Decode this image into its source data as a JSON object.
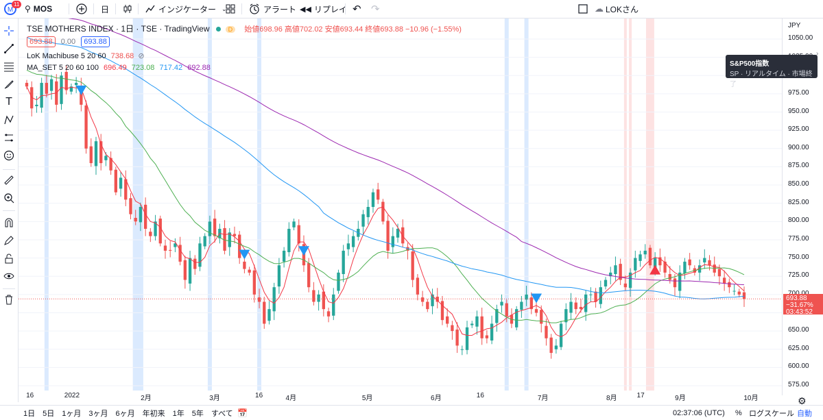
{
  "topbar": {
    "avatar_letter": "M",
    "notif_count": "11",
    "symbol": "MOS",
    "interval": "日",
    "indicators_label": "インジケーター",
    "alert_label": "アラート",
    "replay_label": "リプレイ",
    "user_label": "LOKさん"
  },
  "legend": {
    "title": "TSE MOTHERS INDEX · 1日 · TSE · TradingView",
    "dot_label": "D",
    "ohlc": "始値698.96 高値702.02 安値693.44 終値693.88 −10.96 (−1.55%)",
    "price_left": "693.88",
    "price_mid": "0.00",
    "price_right": "693.88",
    "ind1_name": "LoK Machibuse 5 20 60",
    "ind1_value": "738.68",
    "ind2_name": "MA_SET 5 20 60 100",
    "ind2_v1": "696.49",
    "ind2_v2": "723.08",
    "ind2_v3": "717.42",
    "ind2_v4": "692.88"
  },
  "tooltip": {
    "title": "S&P500指数",
    "line": "SP · リアルタイム · 市場終了"
  },
  "price_axis": {
    "currency": "JPY",
    "ticks": [
      "1050.00",
      "1025.00",
      "1000.00",
      "975.00",
      "950.00",
      "925.00",
      "900.00",
      "875.00",
      "850.00",
      "825.00",
      "800.00",
      "775.00",
      "750.00",
      "725.00",
      "700.00",
      "675.00",
      "650.00",
      "625.00",
      "600.00",
      "575.00"
    ],
    "last_price": "693.88",
    "last_change": "−31.67%",
    "countdown": "03:43:52"
  },
  "time_axis": {
    "labels": [
      "16",
      "2022",
      "2月",
      "3月",
      "16",
      "4月",
      "5月",
      "6月",
      "16",
      "7月",
      "8月",
      "17",
      "9月",
      "10月"
    ]
  },
  "bottombar": {
    "ranges": [
      "1日",
      "5日",
      "1ヶ月",
      "3ヶ月",
      "6ヶ月",
      "年初来",
      "1年",
      "5年",
      "すべて"
    ],
    "clock": "02:37:06 (UTC)",
    "percent": "%",
    "log": "ログスケール",
    "auto": "自動"
  },
  "colors": {
    "up": "#26a69a",
    "down": "#ef5350",
    "ma5": "#f23645",
    "ma20": "#4caf50",
    "ma60": "#2196f3",
    "ma100": "#9c27b0",
    "signal_down": "#2196f3",
    "signal_up": "#f23645",
    "band_blue": "#dbeafe",
    "band_red": "#fde2e2"
  },
  "chart_data": {
    "type": "candlestick",
    "series": [
      {
        "name": "TSE MOTHERS INDEX",
        "close": [
          985,
          955,
          960,
          990,
          975,
          995,
          960,
          1000,
          980,
          985,
          990,
          960,
          900,
          880,
          910,
          880,
          890,
          870,
          840,
          860,
          830,
          810,
          800,
          820,
          790,
          780,
          800,
          770,
          760,
          760,
          770,
          745,
          720,
          750,
          735,
          770,
          780,
          800,
          780,
          790,
          760,
          785,
          780,
          750,
          735,
          730,
          700,
          690,
          660,
          680,
          710,
          740,
          760,
          790,
          800,
          770,
          740,
          710,
          690,
          700,
          680,
          670,
          700,
          730,
          760,
          770,
          780,
          790,
          810,
          820,
          840,
          830,
          800,
          760,
          780,
          790,
          770,
          760,
          720,
          700,
          690,
          680,
          700,
          690,
          665,
          660,
          650,
          630,
          625,
          655,
          660,
          670,
          640,
          640,
          660,
          680,
          690,
          670,
          660,
          680,
          690,
          700,
          680,
          675,
          660,
          640,
          620,
          630,
          660,
          680,
          690,
          680,
          680,
          700,
          700,
          690,
          710,
          720,
          730,
          740,
          720,
          710,
          730,
          750,
          755,
          760,
          740,
          750,
          740,
          730,
          720,
          710,
          730,
          745,
          740,
          730,
          740,
          750,
          740,
          730,
          725,
          715,
          710,
          705,
          700,
          694
        ]
      }
    ],
    "ma_series": [
      "MA5",
      "MA20",
      "MA60",
      "MA100"
    ],
    "signals": [
      {
        "type": "down",
        "index": 11
      },
      {
        "type": "down",
        "index": 44
      },
      {
        "type": "down",
        "index": 56
      },
      {
        "type": "down",
        "index": 103
      },
      {
        "type": "up",
        "index": 127
      }
    ],
    "ylim": [
      560,
      1060
    ],
    "y_ticks": [
      575,
      600,
      625,
      650,
      675,
      700,
      725,
      750,
      775,
      800,
      825,
      850,
      875,
      900,
      925,
      950,
      975,
      1000,
      1025,
      1050
    ]
  }
}
